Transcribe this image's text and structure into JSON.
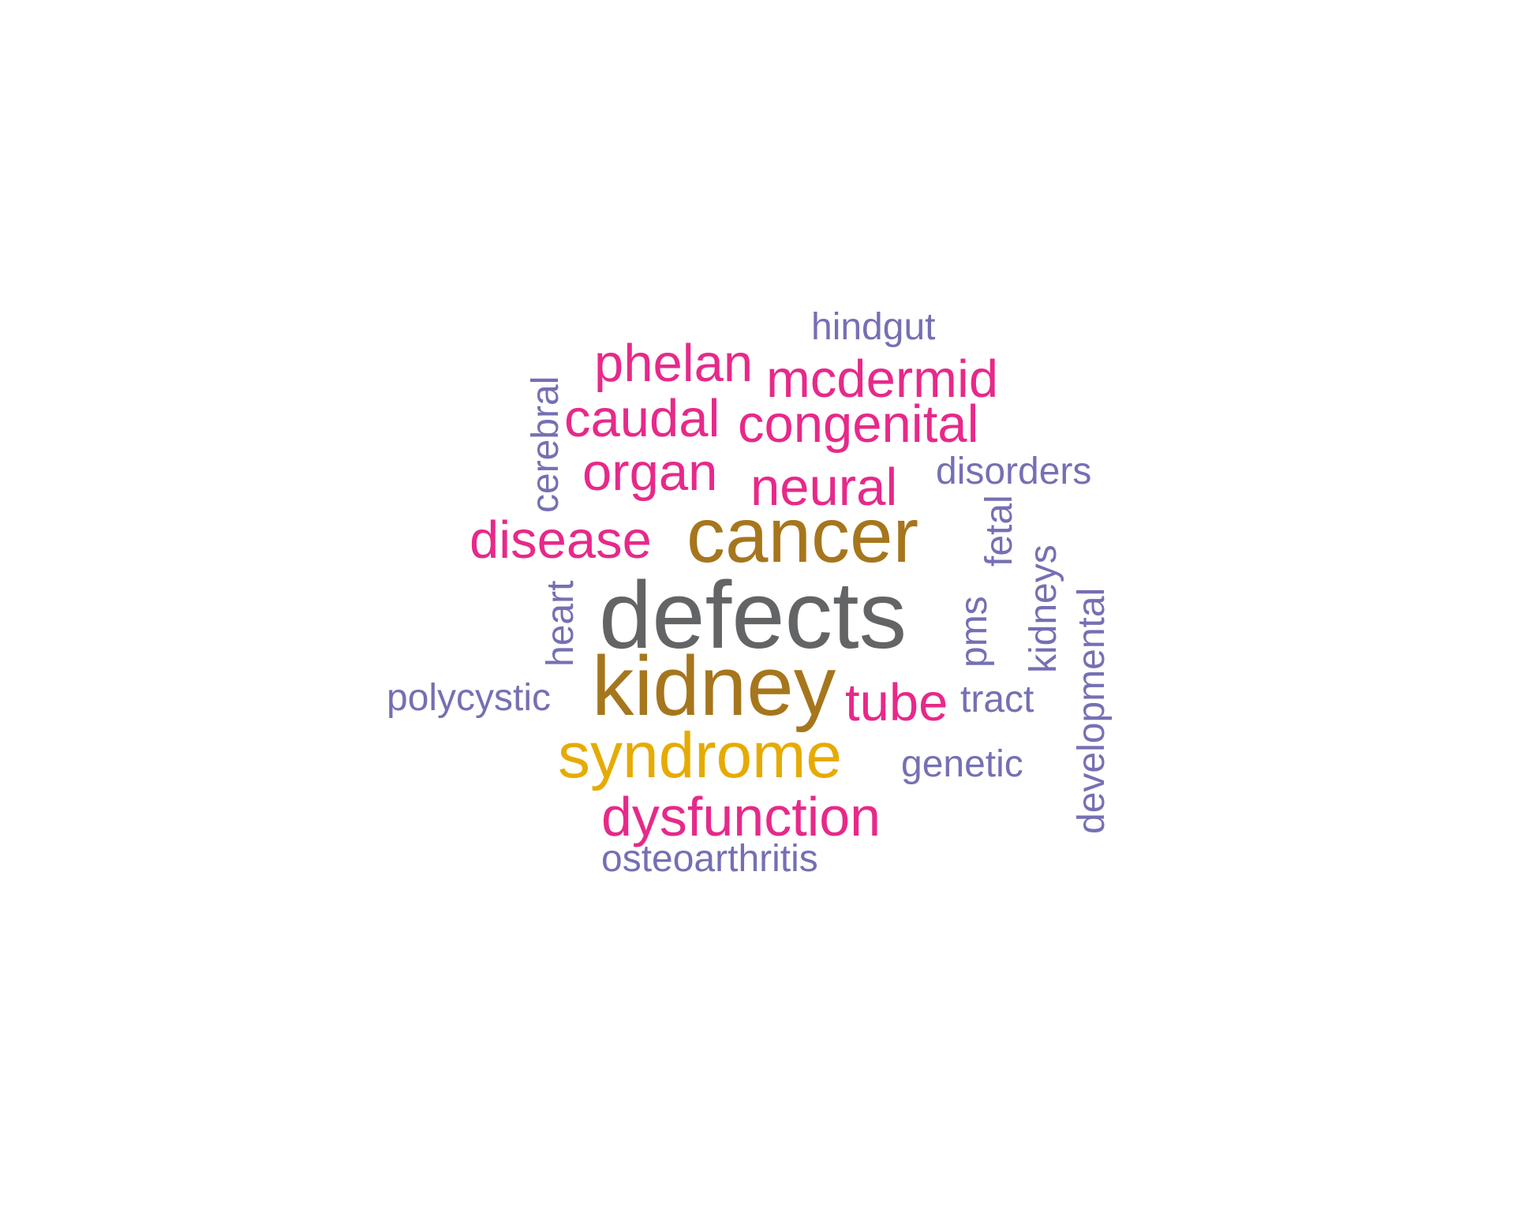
{
  "words": [
    {
      "id": "defects",
      "text": "defects",
      "color": "#636466"
    },
    {
      "id": "kidney",
      "text": "kidney",
      "color": "#A6761D"
    },
    {
      "id": "cancer",
      "text": "cancer",
      "color": "#A6761D"
    },
    {
      "id": "syndrome",
      "text": "syndrome",
      "color": "#E6AB02"
    },
    {
      "id": "dysfunction",
      "text": "dysfunction",
      "color": "#E7298A"
    },
    {
      "id": "disease",
      "text": "disease",
      "color": "#E7298A"
    },
    {
      "id": "tube",
      "text": "tube",
      "color": "#E7298A"
    },
    {
      "id": "neural",
      "text": "neural",
      "color": "#E7298A"
    },
    {
      "id": "organ",
      "text": "organ",
      "color": "#E7298A"
    },
    {
      "id": "caudal",
      "text": "caudal",
      "color": "#E7298A"
    },
    {
      "id": "congenital",
      "text": "congenital",
      "color": "#E7298A"
    },
    {
      "id": "phelan",
      "text": "phelan",
      "color": "#E7298A"
    },
    {
      "id": "mcdermid",
      "text": "mcdermid",
      "color": "#E7298A"
    },
    {
      "id": "hindgut",
      "text": "hindgut",
      "color": "#7570B3"
    },
    {
      "id": "disorders",
      "text": "disorders",
      "color": "#7570B3"
    },
    {
      "id": "polycystic",
      "text": "polycystic",
      "color": "#7570B3"
    },
    {
      "id": "tract",
      "text": "tract",
      "color": "#7570B3"
    },
    {
      "id": "genetic",
      "text": "genetic",
      "color": "#7570B3"
    },
    {
      "id": "osteoarthritis",
      "text": "osteoarthritis",
      "color": "#7570B3"
    },
    {
      "id": "cerebral",
      "text": "cerebral",
      "color": "#7570B3"
    },
    {
      "id": "heart",
      "text": "heart",
      "color": "#7570B3"
    },
    {
      "id": "fetal",
      "text": "fetal",
      "color": "#7570B3"
    },
    {
      "id": "pms",
      "text": "pms",
      "color": "#7570B3"
    },
    {
      "id": "kidneys",
      "text": "kidneys",
      "color": "#7570B3"
    },
    {
      "id": "developmental",
      "text": "developmental",
      "color": "#7570B3"
    }
  ]
}
